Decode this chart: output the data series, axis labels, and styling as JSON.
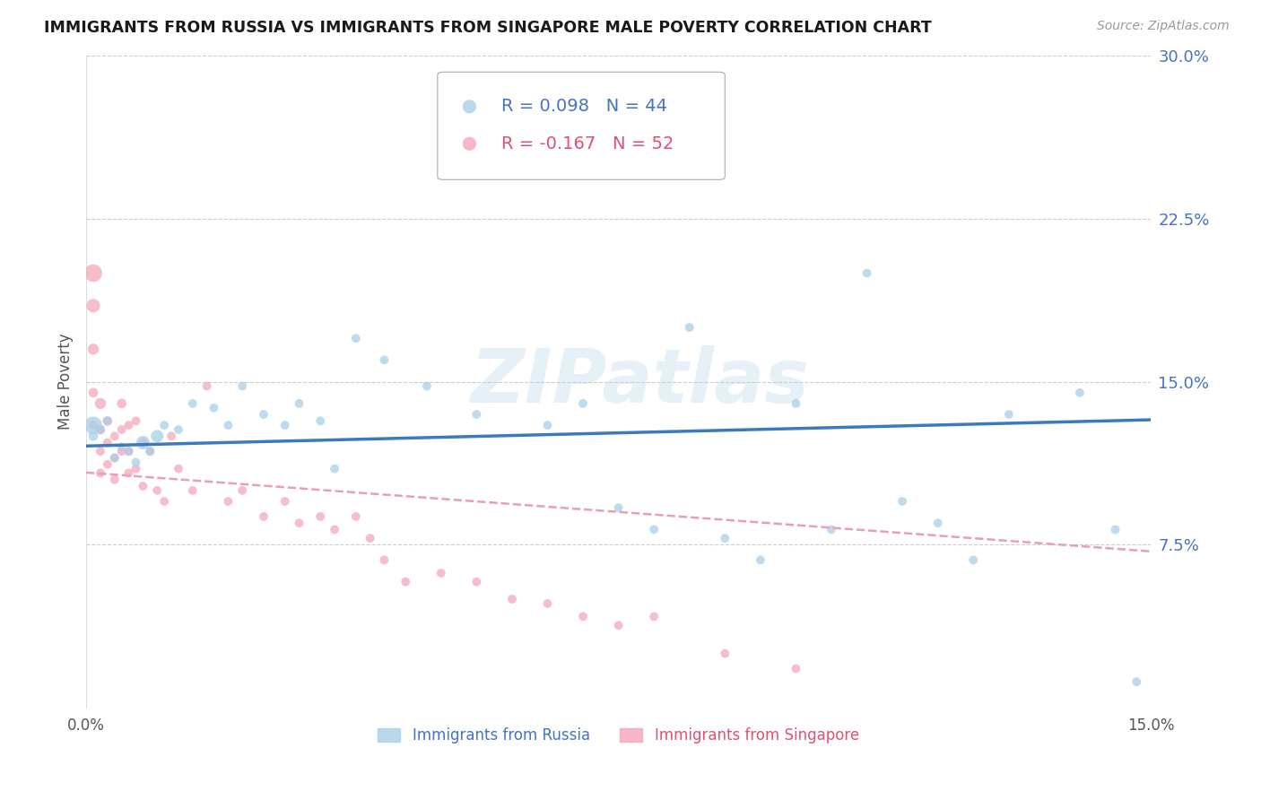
{
  "title": "IMMIGRANTS FROM RUSSIA VS IMMIGRANTS FROM SINGAPORE MALE POVERTY CORRELATION CHART",
  "source": "Source: ZipAtlas.com",
  "ylabel": "Male Poverty",
  "xlim": [
    0,
    0.15
  ],
  "ylim": [
    0,
    0.3
  ],
  "xtick_labels": [
    "0.0%",
    "15.0%"
  ],
  "xtick_vals": [
    0.0,
    0.15
  ],
  "ytick_labels": [
    "30.0%",
    "22.5%",
    "15.0%",
    "7.5%"
  ],
  "ytick_vals": [
    0.3,
    0.225,
    0.15,
    0.075
  ],
  "russia_R": 0.098,
  "russia_N": 44,
  "singapore_R": -0.167,
  "singapore_N": 52,
  "russia_color": "#a8cfe8",
  "singapore_color": "#f4a7b9",
  "trendline_russia_color": "#3a7abf",
  "trendline_singapore_color": "#e8a0b0",
  "background_color": "#ffffff",
  "watermark": "ZIPatlas",
  "russia_x": [
    0.001,
    0.001,
    0.002,
    0.003,
    0.004,
    0.005,
    0.006,
    0.007,
    0.008,
    0.009,
    0.01,
    0.011,
    0.013,
    0.015,
    0.018,
    0.02,
    0.022,
    0.025,
    0.028,
    0.03,
    0.033,
    0.035,
    0.038,
    0.042,
    0.048,
    0.055,
    0.06,
    0.065,
    0.07,
    0.075,
    0.08,
    0.085,
    0.09,
    0.095,
    0.1,
    0.105,
    0.11,
    0.115,
    0.12,
    0.125,
    0.13,
    0.14,
    0.145,
    0.148
  ],
  "russia_y": [
    0.13,
    0.125,
    0.128,
    0.132,
    0.115,
    0.12,
    0.118,
    0.113,
    0.122,
    0.118,
    0.125,
    0.13,
    0.128,
    0.14,
    0.138,
    0.13,
    0.148,
    0.135,
    0.13,
    0.14,
    0.132,
    0.11,
    0.17,
    0.16,
    0.148,
    0.135,
    0.26,
    0.13,
    0.14,
    0.092,
    0.082,
    0.175,
    0.078,
    0.068,
    0.14,
    0.082,
    0.2,
    0.095,
    0.085,
    0.068,
    0.135,
    0.145,
    0.082,
    0.012
  ],
  "russia_size": [
    200,
    60,
    50,
    50,
    50,
    50,
    50,
    50,
    120,
    50,
    100,
    50,
    50,
    50,
    50,
    50,
    50,
    50,
    50,
    50,
    50,
    50,
    50,
    50,
    50,
    50,
    50,
    50,
    50,
    50,
    50,
    50,
    50,
    50,
    50,
    50,
    50,
    50,
    50,
    50,
    50,
    50,
    50,
    50
  ],
  "singapore_x": [
    0.001,
    0.001,
    0.001,
    0.001,
    0.001,
    0.002,
    0.002,
    0.002,
    0.002,
    0.003,
    0.003,
    0.003,
    0.004,
    0.004,
    0.004,
    0.005,
    0.005,
    0.005,
    0.006,
    0.006,
    0.006,
    0.007,
    0.007,
    0.008,
    0.008,
    0.009,
    0.01,
    0.011,
    0.012,
    0.013,
    0.015,
    0.017,
    0.02,
    0.022,
    0.025,
    0.028,
    0.03,
    0.033,
    0.035,
    0.038,
    0.04,
    0.042,
    0.045,
    0.05,
    0.055,
    0.06,
    0.065,
    0.07,
    0.075,
    0.08,
    0.09,
    0.1
  ],
  "singapore_y": [
    0.2,
    0.185,
    0.165,
    0.145,
    0.13,
    0.14,
    0.128,
    0.118,
    0.108,
    0.132,
    0.122,
    0.112,
    0.125,
    0.115,
    0.105,
    0.14,
    0.128,
    0.118,
    0.13,
    0.118,
    0.108,
    0.132,
    0.11,
    0.122,
    0.102,
    0.118,
    0.1,
    0.095,
    0.125,
    0.11,
    0.1,
    0.148,
    0.095,
    0.1,
    0.088,
    0.095,
    0.085,
    0.088,
    0.082,
    0.088,
    0.078,
    0.068,
    0.058,
    0.062,
    0.058,
    0.05,
    0.048,
    0.042,
    0.038,
    0.042,
    0.025,
    0.018
  ],
  "singapore_size": [
    200,
    120,
    80,
    60,
    50,
    80,
    60,
    50,
    50,
    60,
    50,
    50,
    50,
    50,
    50,
    60,
    50,
    50,
    50,
    50,
    50,
    50,
    50,
    50,
    50,
    50,
    50,
    50,
    50,
    50,
    50,
    50,
    50,
    50,
    50,
    50,
    50,
    50,
    50,
    50,
    50,
    50,
    50,
    50,
    50,
    50,
    50,
    50,
    50,
    50,
    50,
    50
  ],
  "legend_russia_label": "R = 0.098   N = 44",
  "legend_singapore_label": "R = -0.167   N = 52",
  "bottom_legend_russia": "Immigrants from Russia",
  "bottom_legend_singapore": "Immigrants from Singapore"
}
